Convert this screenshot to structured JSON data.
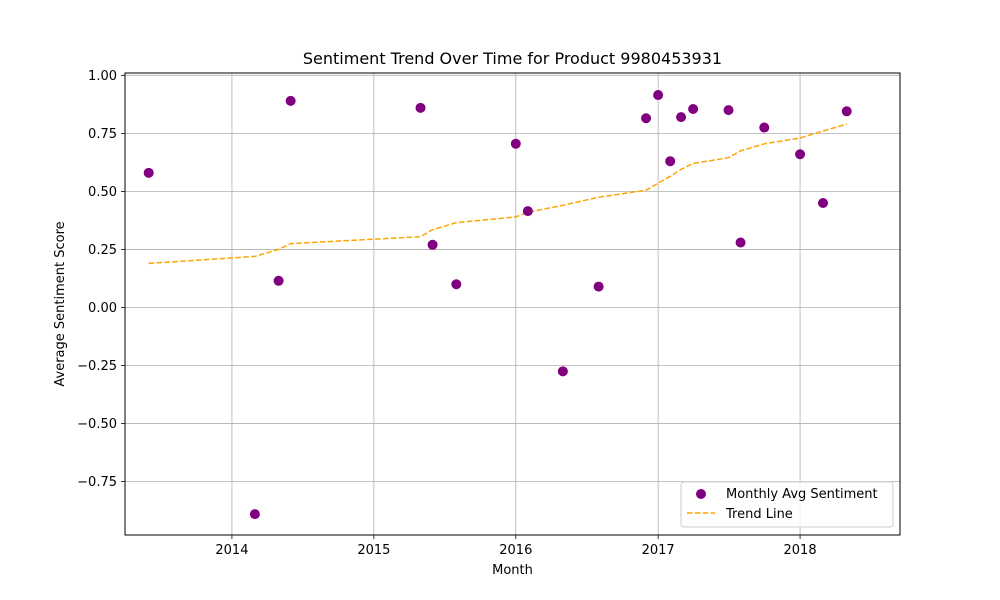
{
  "chart_data": {
    "type": "scatter",
    "title": "Sentiment Trend Over Time for Product 9980453931",
    "xlabel": "Month",
    "ylabel": "Average Sentiment Score",
    "xlim": [
      "2013-04-01",
      "2018-09-15"
    ],
    "ylim": [
      -0.98,
      1.01
    ],
    "x_ticks": [
      "2014-01-01",
      "2015-01-01",
      "2016-01-01",
      "2017-01-01",
      "2018-01-01"
    ],
    "x_tick_labels": [
      "2014",
      "2015",
      "2016",
      "2017",
      "2018"
    ],
    "y_ticks": [
      1.0,
      0.75,
      0.5,
      0.25,
      0.0,
      -0.25,
      -0.5,
      -0.75
    ],
    "y_tick_labels": [
      "1.00",
      "0.75",
      "0.50",
      "0.25",
      "0.00",
      "−0.25",
      "−0.50",
      "−0.75"
    ],
    "grid": true,
    "legend_position": "lower-right",
    "series": [
      {
        "name": "Monthly Avg Sentiment",
        "kind": "scatter",
        "color": "#800080",
        "points": [
          {
            "x": "2013-06-01",
            "y": 0.58
          },
          {
            "x": "2014-03-01",
            "y": -0.89
          },
          {
            "x": "2014-05-01",
            "y": 0.115
          },
          {
            "x": "2014-06-01",
            "y": 0.89
          },
          {
            "x": "2015-05-01",
            "y": 0.86
          },
          {
            "x": "2015-06-01",
            "y": 0.27
          },
          {
            "x": "2015-08-01",
            "y": 0.1
          },
          {
            "x": "2016-01-01",
            "y": 0.705
          },
          {
            "x": "2016-02-01",
            "y": 0.415
          },
          {
            "x": "2016-05-01",
            "y": -0.275
          },
          {
            "x": "2016-08-01",
            "y": 0.09
          },
          {
            "x": "2016-12-01",
            "y": 0.815
          },
          {
            "x": "2017-01-01",
            "y": 0.915
          },
          {
            "x": "2017-02-01",
            "y": 0.63
          },
          {
            "x": "2017-03-01",
            "y": 0.82
          },
          {
            "x": "2017-04-01",
            "y": 0.855
          },
          {
            "x": "2017-07-01",
            "y": 0.85
          },
          {
            "x": "2017-08-01",
            "y": 0.28
          },
          {
            "x": "2017-10-01",
            "y": 0.775
          },
          {
            "x": "2018-01-01",
            "y": 0.66
          },
          {
            "x": "2018-03-01",
            "y": 0.45
          },
          {
            "x": "2018-05-01",
            "y": 0.845
          }
        ]
      },
      {
        "name": "Trend Line",
        "kind": "line",
        "color": "#FFA500",
        "dash": "dashed",
        "points": [
          {
            "x": "2013-06-01",
            "y": 0.19
          },
          {
            "x": "2014-03-01",
            "y": 0.22
          },
          {
            "x": "2014-05-01",
            "y": 0.25
          },
          {
            "x": "2014-06-01",
            "y": 0.275
          },
          {
            "x": "2015-05-01",
            "y": 0.305
          },
          {
            "x": "2015-06-01",
            "y": 0.335
          },
          {
            "x": "2015-08-01",
            "y": 0.365
          },
          {
            "x": "2016-01-01",
            "y": 0.39
          },
          {
            "x": "2016-02-01",
            "y": 0.41
          },
          {
            "x": "2016-05-01",
            "y": 0.44
          },
          {
            "x": "2016-08-01",
            "y": 0.475
          },
          {
            "x": "2016-12-01",
            "y": 0.505
          },
          {
            "x": "2017-01-01",
            "y": 0.535
          },
          {
            "x": "2017-02-01",
            "y": 0.565
          },
          {
            "x": "2017-03-01",
            "y": 0.595
          },
          {
            "x": "2017-04-01",
            "y": 0.62
          },
          {
            "x": "2017-07-01",
            "y": 0.645
          },
          {
            "x": "2017-08-01",
            "y": 0.675
          },
          {
            "x": "2017-10-01",
            "y": 0.705
          },
          {
            "x": "2018-01-01",
            "y": 0.73
          },
          {
            "x": "2018-03-01",
            "y": 0.76
          },
          {
            "x": "2018-05-01",
            "y": 0.79
          }
        ]
      }
    ]
  }
}
